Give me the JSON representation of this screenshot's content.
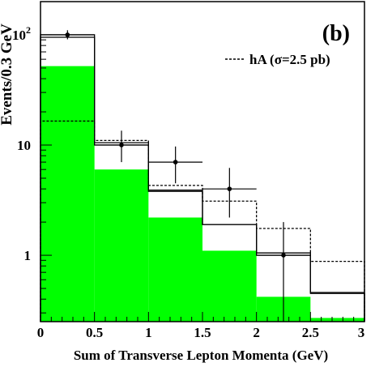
{
  "chart_data": {
    "type": "bar",
    "panel_label": "(b)",
    "xlabel": "Sum of Transverse Lepton Momenta (GeV)",
    "ylabel": "Events/0.3 GeV",
    "xlim": [
      0,
      3
    ],
    "ylim": [
      0.25,
      200
    ],
    "y_scale": "log",
    "bin_edges": [
      0,
      0.5,
      1,
      1.5,
      2,
      2.5,
      3
    ],
    "x_ticks": [
      {
        "value": 0,
        "label": "0"
      },
      {
        "value": 0.5,
        "label": "0.5"
      },
      {
        "value": 1,
        "label": "1"
      },
      {
        "value": 1.5,
        "label": "1.5"
      },
      {
        "value": 2,
        "label": "2"
      },
      {
        "value": 2.5,
        "label": "2.5"
      },
      {
        "value": 3,
        "label": "3"
      }
    ],
    "y_ticks": [
      {
        "value": 1,
        "label": "1"
      },
      {
        "value": 10,
        "label": "10"
      },
      {
        "value": 100,
        "label": "10",
        "exponent": "2"
      }
    ],
    "legend": {
      "label": "hA (σ=2.5 pb)",
      "placement": "top-right",
      "style": "dashed"
    },
    "series": [
      {
        "kind": "filled",
        "color": "#00ff00",
        "values": [
          52,
          6,
          2.2,
          1.1,
          0.42,
          0.27
        ]
      },
      {
        "kind": "outline",
        "values": [
          100,
          10.5,
          3.9,
          1.9,
          1.05,
          0.46
        ]
      },
      {
        "kind": "outline",
        "values": [
          95,
          10,
          3.8,
          1.9,
          1.0,
          0.45
        ]
      },
      {
        "kind": "dashed",
        "name": "hA (σ=2.5 pb)",
        "values": [
          16.5,
          11,
          4.3,
          3.1,
          1.75,
          0.88
        ]
      },
      {
        "kind": "data",
        "x": [
          0.25,
          0.75,
          1.25,
          1.75,
          2.25
        ],
        "y": [
          100,
          10,
          7,
          4,
          1
        ],
        "err_low": [
          9,
          3,
          2.5,
          1.8,
          0.75
        ],
        "err_high": [
          10,
          3.5,
          2.7,
          2.2,
          1.0
        ]
      }
    ]
  }
}
